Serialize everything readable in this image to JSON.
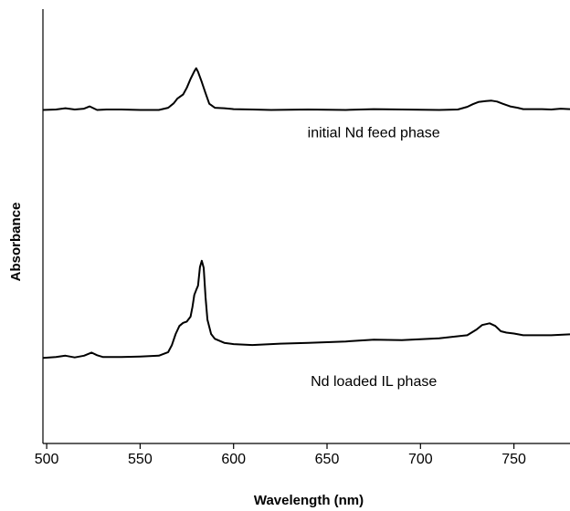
{
  "chart_data": {
    "type": "line",
    "title": "",
    "xlabel": "Wavelength (nm)",
    "ylabel": "Absorbance",
    "xlim": [
      498,
      780
    ],
    "ylim": [
      0,
      1
    ],
    "x_ticks": [
      500,
      550,
      600,
      650,
      700,
      750
    ],
    "y_ticks_labeled": false,
    "grid": false,
    "legend": "none",
    "annotations": [
      {
        "text": "initial Nd feed phase",
        "x": 675,
        "y": 0.69
      },
      {
        "text": "Nd loaded IL phase",
        "x": 675,
        "y": 0.13
      }
    ],
    "series": [
      {
        "x": [
          498,
          505,
          510,
          515,
          520,
          523,
          527,
          532,
          540,
          550,
          560,
          565,
          568,
          570,
          573,
          575,
          577,
          579,
          580,
          581,
          583,
          585,
          587,
          590,
          595,
          600,
          610,
          620,
          640,
          660,
          675,
          690,
          710,
          720,
          725,
          728,
          731,
          735,
          738,
          741,
          744,
          748,
          752,
          755,
          760,
          765,
          770,
          775,
          780
        ],
        "y": [
          0.752,
          0.753,
          0.756,
          0.753,
          0.755,
          0.76,
          0.752,
          0.753,
          0.753,
          0.752,
          0.752,
          0.757,
          0.767,
          0.778,
          0.787,
          0.802,
          0.822,
          0.839,
          0.846,
          0.838,
          0.815,
          0.79,
          0.766,
          0.757,
          0.756,
          0.754,
          0.753,
          0.752,
          0.753,
          0.752,
          0.754,
          0.753,
          0.752,
          0.753,
          0.759,
          0.765,
          0.77,
          0.772,
          0.773,
          0.771,
          0.766,
          0.76,
          0.757,
          0.754,
          0.754,
          0.754,
          0.753,
          0.755,
          0.754
        ]
      },
      {
        "x": [
          498,
          505,
          510,
          515,
          520,
          524,
          527,
          530,
          540,
          550,
          560,
          565,
          567,
          569,
          571,
          573,
          575,
          577,
          578,
          579,
          580,
          581,
          582,
          583,
          584,
          585,
          586,
          588,
          590,
          595,
          600,
          610,
          625,
          640,
          660,
          675,
          690,
          710,
          725,
          730,
          733,
          737,
          740,
          743,
          746,
          750,
          755,
          760,
          770,
          780
        ],
        "y": [
          0.193,
          0.195,
          0.198,
          0.194,
          0.198,
          0.205,
          0.199,
          0.195,
          0.195,
          0.196,
          0.198,
          0.206,
          0.222,
          0.247,
          0.265,
          0.272,
          0.275,
          0.286,
          0.308,
          0.335,
          0.346,
          0.356,
          0.398,
          0.412,
          0.396,
          0.33,
          0.279,
          0.247,
          0.236,
          0.227,
          0.224,
          0.222,
          0.225,
          0.227,
          0.23,
          0.234,
          0.233,
          0.237,
          0.244,
          0.257,
          0.267,
          0.271,
          0.265,
          0.253,
          0.25,
          0.248,
          0.244,
          0.244,
          0.244,
          0.246
        ]
      }
    ]
  }
}
